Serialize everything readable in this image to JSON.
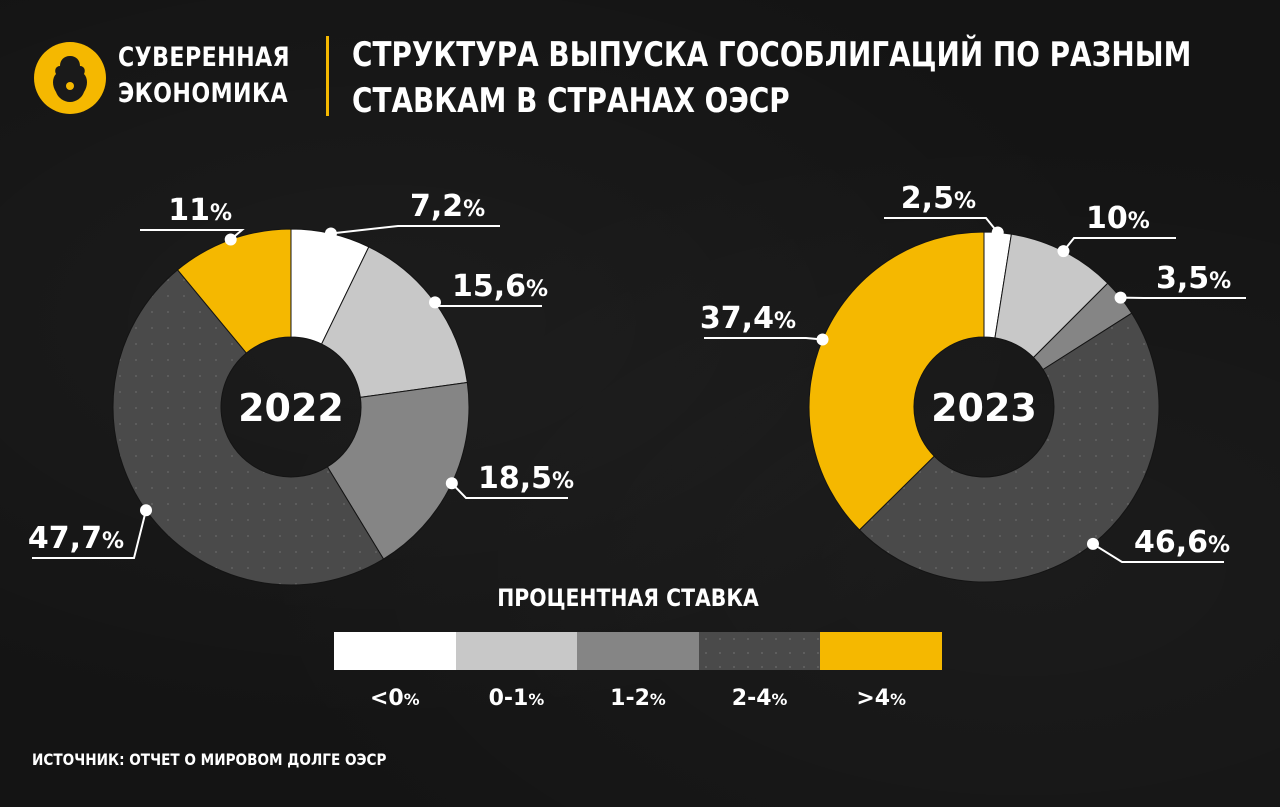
{
  "header": {
    "brand_line1": "СУВЕРЕННАЯ",
    "brand_line2": "ЭКОНОМИКА",
    "title_line1": "СТРУКТУРА ВЫПУСКА ГОСОБЛИГАЦИЙ ПО РАЗНЫМ",
    "title_line2": "СТАВКАМ В СТРАНАХ ОЭСР"
  },
  "colors": {
    "background": "#141414",
    "accent": "#f5b800",
    "lt0": "#ffffff",
    "r0_1": "#c8c8c8",
    "r1_2": "#858585",
    "r2_4": "#4a4a4a",
    "gt4": "#f5b800"
  },
  "legend": {
    "title": "ПРОЦЕНТНАЯ СТАВКА",
    "items": [
      {
        "label": "<0",
        "unit": "%",
        "color": "#ffffff"
      },
      {
        "label": "0-1",
        "unit": "%",
        "color": "#c8c8c8"
      },
      {
        "label": "1-2",
        "unit": "%",
        "color": "#858585"
      },
      {
        "label": "2-4",
        "unit": "%",
        "color": "#4a4a4a"
      },
      {
        "label": ">4",
        "unit": "%",
        "color": "#f5b800"
      }
    ]
  },
  "chart_data": [
    {
      "type": "donut",
      "center_label": "2022",
      "categories": [
        "<0%",
        "0-1%",
        "1-2%",
        "2-4%",
        ">4%"
      ],
      "values": [
        7.2,
        15.6,
        18.5,
        47.7,
        11
      ],
      "value_labels": [
        "7,2",
        "15,6",
        "18,5",
        "47,7",
        "11"
      ]
    },
    {
      "type": "donut",
      "center_label": "2023",
      "categories": [
        "<0%",
        "0-1%",
        "1-2%",
        "2-4%",
        ">4%"
      ],
      "values": [
        2.5,
        10,
        3.5,
        46.6,
        37.4
      ],
      "value_labels": [
        "2,5",
        "10",
        "3,5",
        "46,6",
        "37,4"
      ]
    }
  ],
  "footer": {
    "source": "ИСТОЧНИК: ОТЧЕТ О МИРОВОМ ДОЛГЕ ОЭСР"
  }
}
